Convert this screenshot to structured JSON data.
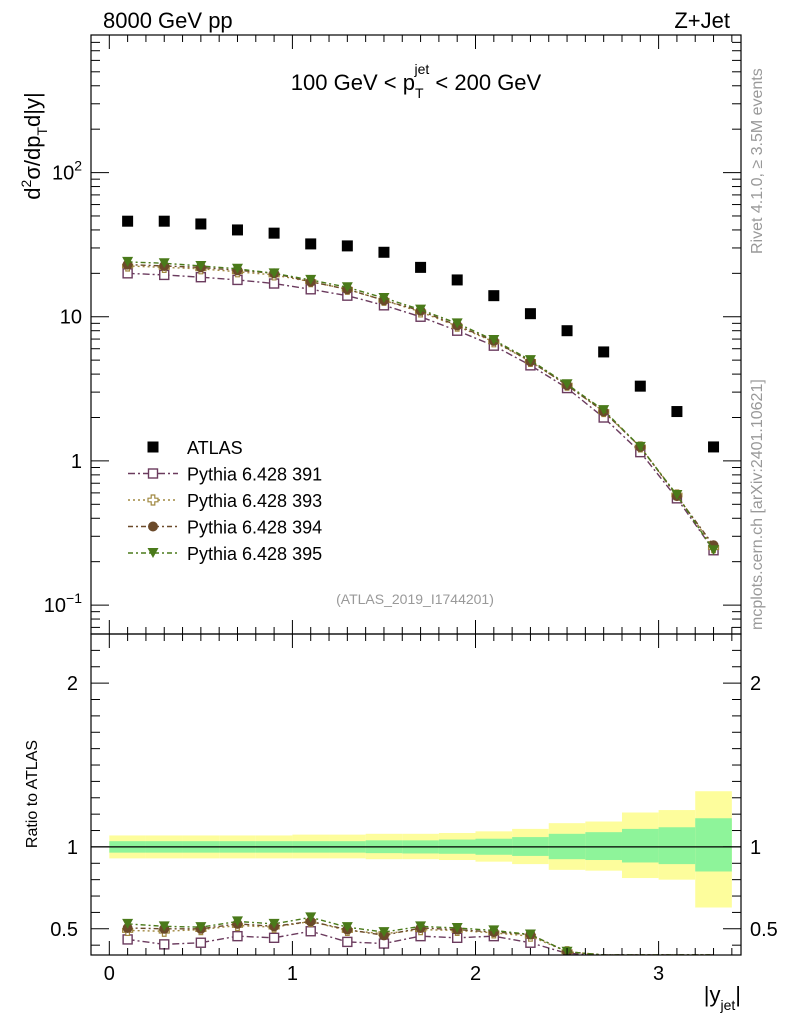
{
  "header": {
    "left": "8000 GeV pp",
    "right": "Z+Jet"
  },
  "side_text": {
    "rivet": "Rivet 4.1.0, ≥ 3.5M events",
    "mcplots": "mcplots.cern.ch [arXiv:2401.10621]"
  },
  "chart_data": {
    "type": "scatter",
    "title": "100 GeV < p_T^jet < 200 GeV",
    "title_parts": {
      "pre": "100 GeV < p",
      "sub": "T",
      "sup": "jet",
      "post": " < 200 GeV"
    },
    "analysis_id": "(ATLAS_2019_I1744201)",
    "ylabel_top": "d²σ/dp_T d|y|",
    "ylabel_parts": {
      "a": "d",
      "sup2": "2",
      "b": "σ/dp",
      "subT": "T",
      "c": "d|y|"
    },
    "ylabel_bottom": "Ratio to ATLAS",
    "xlabel": "|y_jet|",
    "xlabel_parts": {
      "a": "|y",
      "sub": "jet",
      "b": "|"
    },
    "xlim": [
      -0.1,
      3.45
    ],
    "ylim_top": [
      0.063,
      900
    ],
    "ylim_bottom": [
      0.34,
      2.3
    ],
    "yscale_top": "log",
    "x_ticks": [
      0,
      1,
      2,
      3
    ],
    "x_tick_labels": [
      "0",
      "1",
      "2",
      "3"
    ],
    "y_ticks_top_labels": [
      "10⁻¹",
      "1",
      "10",
      "10²"
    ],
    "y_ticks_bottom": [
      0.5,
      1,
      2
    ],
    "y_ticks_bottom_labels": [
      "0.5",
      "1",
      "2"
    ],
    "legend_position": "lower-left",
    "x": [
      0.1,
      0.3,
      0.5,
      0.7,
      0.9,
      1.1,
      1.3,
      1.5,
      1.7,
      1.9,
      2.1,
      2.3,
      2.5,
      2.7,
      2.9,
      3.1,
      3.3
    ],
    "bin_edges": [
      0.0,
      0.2,
      0.4,
      0.6,
      0.8,
      1.0,
      1.2,
      1.4,
      1.6,
      1.8,
      2.0,
      2.2,
      2.4,
      2.6,
      2.8,
      3.0,
      3.2,
      3.4
    ],
    "series": [
      {
        "name": "ATLAS",
        "color": "#000000",
        "marker": "square-filled",
        "values": [
          46,
          46,
          44,
          40,
          38,
          32,
          31,
          28,
          22,
          18,
          14,
          10.5,
          8.0,
          5.7,
          3.3,
          2.2,
          1.25
        ]
      },
      {
        "name": "Pythia 6.428 391",
        "color": "#6b3b5e",
        "marker": "square-open",
        "dash": "7,3,2,3",
        "values": [
          20,
          19.5,
          18.8,
          18,
          17,
          15.5,
          14,
          12,
          10,
          8.0,
          6.3,
          4.6,
          3.2,
          2.0,
          1.15,
          0.55,
          0.24
        ],
        "ratio": [
          0.435,
          0.405,
          0.415,
          0.455,
          0.445,
          0.485,
          0.42,
          0.41,
          0.455,
          0.445,
          0.455,
          0.415,
          0.35,
          0.34,
          0.34,
          0.34,
          0.34
        ]
      },
      {
        "name": "Pythia 6.428 393",
        "color": "#a08840",
        "marker": "cross-open",
        "dash": "2,3",
        "values": [
          22.5,
          22,
          21.5,
          20.5,
          19.5,
          17.5,
          15.5,
          13,
          10.8,
          8.6,
          6.7,
          4.9,
          3.35,
          2.2,
          1.25,
          0.58,
          0.25
        ],
        "ratio": [
          0.49,
          0.485,
          0.495,
          0.52,
          0.51,
          0.545,
          0.49,
          0.47,
          0.495,
          0.49,
          0.475,
          0.455,
          0.36,
          0.34,
          0.34,
          0.34,
          0.34
        ]
      },
      {
        "name": "Pythia 6.428 394",
        "color": "#6b4a2a",
        "marker": "circle-filled",
        "dash": "5,3,2,3",
        "values": [
          23,
          22.5,
          22,
          21,
          20,
          17.5,
          15.5,
          13,
          11,
          8.7,
          6.8,
          4.9,
          3.35,
          2.2,
          1.25,
          0.57,
          0.26
        ],
        "ratio": [
          0.505,
          0.5,
          0.5,
          0.53,
          0.515,
          0.545,
          0.495,
          0.46,
          0.505,
          0.495,
          0.48,
          0.465,
          0.36,
          0.34,
          0.34,
          0.34,
          0.34
        ]
      },
      {
        "name": "Pythia 6.428 395",
        "color": "#4a7a1a",
        "marker": "triangle-down-filled",
        "dash": "5,3,2,3",
        "values": [
          24,
          23.5,
          22.5,
          21.5,
          20,
          18,
          16,
          13.5,
          11.2,
          9.0,
          6.9,
          5.0,
          3.4,
          2.25,
          1.25,
          0.58,
          0.24
        ],
        "ratio": [
          0.53,
          0.515,
          0.51,
          0.545,
          0.53,
          0.57,
          0.51,
          0.48,
          0.515,
          0.505,
          0.49,
          0.465,
          0.36,
          0.34,
          0.34,
          0.34,
          0.34
        ]
      }
    ],
    "band_inner": [
      [
        0.965,
        1.035
      ],
      [
        0.965,
        1.035
      ],
      [
        0.965,
        1.035
      ],
      [
        0.965,
        1.035
      ],
      [
        0.965,
        1.035
      ],
      [
        0.965,
        1.035
      ],
      [
        0.965,
        1.035
      ],
      [
        0.962,
        1.04
      ],
      [
        0.96,
        1.04
      ],
      [
        0.958,
        1.045
      ],
      [
        0.952,
        1.05
      ],
      [
        0.945,
        1.06
      ],
      [
        0.925,
        1.08
      ],
      [
        0.92,
        1.09
      ],
      [
        0.905,
        1.11
      ],
      [
        0.895,
        1.12
      ],
      [
        0.85,
        1.175
      ]
    ],
    "band_outer": [
      [
        0.93,
        1.07
      ],
      [
        0.93,
        1.07
      ],
      [
        0.93,
        1.07
      ],
      [
        0.93,
        1.07
      ],
      [
        0.93,
        1.07
      ],
      [
        0.93,
        1.075
      ],
      [
        0.93,
        1.075
      ],
      [
        0.925,
        1.08
      ],
      [
        0.925,
        1.08
      ],
      [
        0.92,
        1.085
      ],
      [
        0.91,
        1.095
      ],
      [
        0.895,
        1.11
      ],
      [
        0.86,
        1.145
      ],
      [
        0.855,
        1.155
      ],
      [
        0.81,
        1.21
      ],
      [
        0.8,
        1.225
      ],
      [
        0.63,
        1.34
      ]
    ]
  },
  "colors": {
    "band_inner": "#8ef49a",
    "band_outer": "#fdfd9c"
  }
}
